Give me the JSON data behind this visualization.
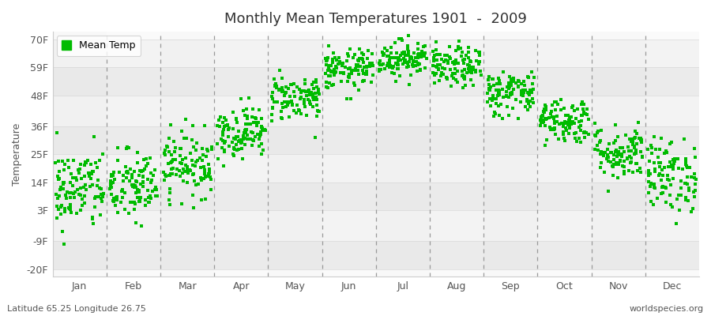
{
  "title": "Monthly Mean Temperatures 1901  -  2009",
  "ylabel": "Temperature",
  "yticks": [
    -20,
    -9,
    3,
    14,
    25,
    36,
    48,
    59,
    70
  ],
  "ytick_labels": [
    "-20F",
    "-9F",
    "3F",
    "14F",
    "25F",
    "36F",
    "48F",
    "59F",
    "70F"
  ],
  "ylim": [
    -23,
    73
  ],
  "months": [
    "Jan",
    "Feb",
    "Mar",
    "Apr",
    "May",
    "Jun",
    "Jul",
    "Aug",
    "Sep",
    "Oct",
    "Nov",
    "Dec"
  ],
  "month_means_celsius": [
    -11.5,
    -11.0,
    -6.0,
    1.0,
    8.5,
    14.5,
    17.0,
    15.0,
    9.5,
    3.5,
    -3.5,
    -8.5
  ],
  "month_stds_celsius": [
    4.5,
    4.0,
    3.5,
    2.8,
    2.5,
    2.2,
    2.0,
    2.2,
    2.5,
    2.5,
    3.0,
    4.0
  ],
  "n_years": 109,
  "dot_color": "#00bb00",
  "dot_size": 6,
  "background_color": "#f0f0f0",
  "h_band_light": "#e8e8e8",
  "h_band_white": "#f5f5f5",
  "v_band_even": "#ebebeb",
  "v_band_odd": "#f2f2f2",
  "legend_label": "Mean Temp",
  "footer_left": "Latitude 65.25 Longitude 26.75",
  "footer_right": "worldspecies.org",
  "dashed_line_color": "#999999",
  "seed": 42
}
